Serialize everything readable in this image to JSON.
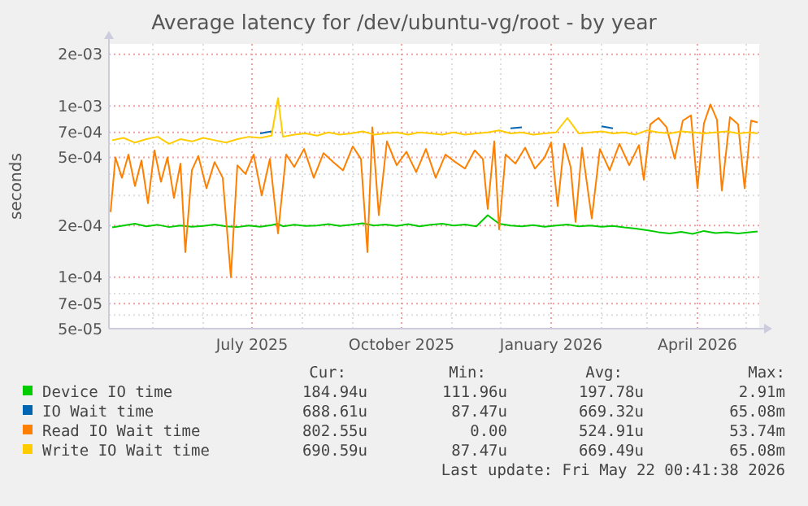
{
  "chart_data": {
    "type": "line",
    "title": "Average latency for /dev/ubuntu-vg/root - by year",
    "ylabel": "seconds",
    "log": "y",
    "grid": true,
    "legend": "bottom",
    "marker": "none",
    "line_style": "solid",
    "xlim": [
      "2025-04-04",
      "2026-05-09"
    ],
    "xticks": [
      {
        "value": "2025-05-01",
        "label": null
      },
      {
        "value": "2025-06-01",
        "label": null
      },
      {
        "value": "2025-07-01",
        "label": "July 2025"
      },
      {
        "value": "2025-08-01",
        "label": null
      },
      {
        "value": "2025-09-01",
        "label": null
      },
      {
        "value": "2025-10-01",
        "label": "October 2025"
      },
      {
        "value": "2025-11-01",
        "label": null
      },
      {
        "value": "2025-12-01",
        "label": null
      },
      {
        "value": "2026-01-01",
        "label": "January 2026"
      },
      {
        "value": "2026-02-01",
        "label": null
      },
      {
        "value": "2026-03-01",
        "label": null
      },
      {
        "value": "2026-04-01",
        "label": "April 2026"
      },
      {
        "value": "2026-05-01",
        "label": null
      }
    ],
    "ylim": [
      5e-05,
      0.0023
    ],
    "yticks": [
      {
        "value": 5e-05,
        "label": "5e-05"
      },
      {
        "value": 6e-05,
        "label": null
      },
      {
        "value": 7e-05,
        "label": "7e-05"
      },
      {
        "value": 8e-05,
        "label": null
      },
      {
        "value": 0.0001,
        "label": "1e-04"
      },
      {
        "value": 0.0002,
        "label": "2e-04"
      },
      {
        "value": 0.0003,
        "label": null
      },
      {
        "value": 0.0004,
        "label": null
      },
      {
        "value": 0.0005,
        "label": "5e-04"
      },
      {
        "value": 0.0006,
        "label": null
      },
      {
        "value": 0.0007,
        "label": "7e-04"
      },
      {
        "value": 0.001,
        "label": "1e-03"
      },
      {
        "value": 0.002,
        "label": "2e-03"
      }
    ],
    "x": [
      "2025-04-06",
      "2025-04-13",
      "2025-04-20",
      "2025-04-27",
      "2025-05-04",
      "2025-05-11",
      "2025-05-18",
      "2025-05-25",
      "2025-06-01",
      "2025-06-08",
      "2025-06-15",
      "2025-06-22",
      "2025-06-29",
      "2025-07-06",
      "2025-07-13",
      "2025-07-17",
      "2025-07-20",
      "2025-07-27",
      "2025-08-03",
      "2025-08-10",
      "2025-08-17",
      "2025-08-24",
      "2025-08-31",
      "2025-09-07",
      "2025-09-14",
      "2025-09-21",
      "2025-09-28",
      "2025-10-05",
      "2025-10-12",
      "2025-10-19",
      "2025-10-26",
      "2025-11-02",
      "2025-11-09",
      "2025-11-16",
      "2025-11-23",
      "2025-11-30",
      "2025-12-07",
      "2025-12-14",
      "2025-12-21",
      "2025-12-28",
      "2026-01-04",
      "2026-01-11",
      "2026-01-18",
      "2026-01-25",
      "2026-02-01",
      "2026-02-08",
      "2026-02-15",
      "2026-02-22",
      "2026-03-01",
      "2026-03-08",
      "2026-03-15",
      "2026-03-22",
      "2026-03-29",
      "2026-04-05",
      "2026-04-12",
      "2026-04-19",
      "2026-04-26",
      "2026-05-03",
      "2026-05-08"
    ],
    "series": [
      {
        "name": "Device IO time",
        "color": "#00cc00",
        "values": [
          0.000195,
          0.0002,
          0.000205,
          0.000198,
          0.000202,
          0.000196,
          0.0002,
          0.000197,
          0.000199,
          0.000203,
          0.000198,
          0.000196,
          0.0002,
          0.000197,
          0.000201,
          0.000205,
          0.000198,
          0.000202,
          0.000199,
          0.0002,
          0.000204,
          0.000199,
          0.000202,
          0.000206,
          0.0002,
          0.000203,
          0.000199,
          0.000204,
          0.000198,
          0.000202,
          0.000205,
          0.0002,
          0.000203,
          0.000198,
          0.00023,
          0.000205,
          0.0002,
          0.000198,
          0.000201,
          0.000197,
          0.0002,
          0.000203,
          0.000198,
          0.0002,
          0.000197,
          0.000199,
          0.000195,
          0.000192,
          0.000188,
          0.000183,
          0.00018,
          0.000184,
          0.000179,
          0.000186,
          0.000181,
          0.000183,
          0.00018,
          0.000183,
          0.000185
        ]
      },
      {
        "name": "IO Wait time",
        "color": "#0066b3",
        "values": [
          null,
          null,
          null,
          null,
          null,
          null,
          null,
          null,
          null,
          null,
          null,
          null,
          null,
          0.00069,
          0.00071,
          null,
          null,
          null,
          null,
          null,
          null,
          null,
          null,
          null,
          null,
          null,
          null,
          null,
          null,
          null,
          null,
          null,
          null,
          null,
          null,
          null,
          0.00074,
          0.00075,
          null,
          null,
          null,
          null,
          null,
          null,
          0.00076,
          0.00074,
          null,
          null,
          null,
          null,
          null,
          null,
          null,
          null,
          null,
          null,
          null,
          null,
          null
        ]
      },
      {
        "name": "Read IO Wait time",
        "color": "#ff8000",
        "x": [
          "2025-04-05",
          "2025-04-08",
          "2025-04-12",
          "2025-04-16",
          "2025-04-20",
          "2025-04-24",
          "2025-04-28",
          "2025-05-02",
          "2025-05-06",
          "2025-05-10",
          "2025-05-14",
          "2025-05-18",
          "2025-05-21",
          "2025-05-25",
          "2025-05-29",
          "2025-06-03",
          "2025-06-08",
          "2025-06-13",
          "2025-06-18",
          "2025-06-22",
          "2025-06-27",
          "2025-07-02",
          "2025-07-07",
          "2025-07-12",
          "2025-07-17",
          "2025-07-22",
          "2025-07-27",
          "2025-08-02",
          "2025-08-08",
          "2025-08-14",
          "2025-08-20",
          "2025-08-26",
          "2025-09-01",
          "2025-09-06",
          "2025-09-10",
          "2025-09-13",
          "2025-09-17",
          "2025-09-22",
          "2025-09-28",
          "2025-10-04",
          "2025-10-10",
          "2025-10-16",
          "2025-10-22",
          "2025-10-28",
          "2025-11-03",
          "2025-11-09",
          "2025-11-15",
          "2025-11-20",
          "2025-11-23",
          "2025-11-27",
          "2025-11-30",
          "2025-12-04",
          "2025-12-10",
          "2025-12-16",
          "2025-12-22",
          "2025-12-28",
          "2026-01-01",
          "2026-01-05",
          "2026-01-09",
          "2026-01-13",
          "2026-01-16",
          "2026-01-20",
          "2026-01-26",
          "2026-01-31",
          "2026-02-06",
          "2026-02-12",
          "2026-02-18",
          "2026-02-24",
          "2026-02-27",
          "2026-03-03",
          "2026-03-08",
          "2026-03-13",
          "2026-03-18",
          "2026-03-23",
          "2026-03-28",
          "2026-04-01",
          "2026-04-05",
          "2026-04-09",
          "2026-04-13",
          "2026-04-16",
          "2026-04-21",
          "2026-04-26",
          "2026-04-30",
          "2026-05-04",
          "2026-05-08"
        ],
        "values": [
          0.00024,
          0.0005,
          0.00038,
          0.00052,
          0.00034,
          0.00048,
          0.00027,
          0.00055,
          0.00036,
          0.0005,
          0.00029,
          0.00046,
          0.00014,
          0.00042,
          0.00051,
          0.00033,
          0.00047,
          0.00038,
          0.0001,
          0.00045,
          0.0004,
          0.00052,
          0.0003,
          0.00049,
          0.00018,
          0.00052,
          0.00044,
          0.00056,
          0.00038,
          0.00053,
          0.00047,
          0.00042,
          0.00058,
          0.00049,
          0.00014,
          0.00075,
          0.00023,
          0.00062,
          0.00045,
          0.00054,
          0.00041,
          0.00056,
          0.00038,
          0.00052,
          0.00047,
          0.00043,
          0.00055,
          0.00049,
          0.00025,
          0.00062,
          0.00019,
          0.00052,
          0.00046,
          0.00057,
          0.00043,
          0.0005,
          0.00061,
          0.00026,
          0.0006,
          0.00044,
          0.00021,
          0.00057,
          0.00022,
          0.00056,
          0.00042,
          0.0006,
          0.00045,
          0.00059,
          0.00037,
          0.00078,
          0.00085,
          0.00075,
          0.00049,
          0.00082,
          0.00088,
          0.00033,
          0.00079,
          0.00102,
          0.00083,
          0.00032,
          0.00086,
          0.00078,
          0.00033,
          0.00082,
          0.0008
        ]
      },
      {
        "name": "Write IO Wait time",
        "color": "#ffcc00",
        "values": [
          0.00063,
          0.00065,
          0.00061,
          0.00064,
          0.00066,
          0.0006,
          0.00064,
          0.00062,
          0.00065,
          0.00063,
          0.00061,
          0.00064,
          0.00066,
          0.00065,
          0.00067,
          0.00111,
          0.00066,
          0.00068,
          0.00069,
          0.00067,
          0.0007,
          0.00068,
          0.00069,
          0.00071,
          0.00068,
          0.00069,
          0.0007,
          0.00068,
          0.0007,
          0.00069,
          0.00068,
          0.0007,
          0.00068,
          0.00069,
          0.0007,
          0.00072,
          0.00069,
          0.0007,
          0.00068,
          0.00069,
          0.0007,
          0.00085,
          0.00069,
          0.0007,
          0.00071,
          0.00069,
          0.0007,
          0.00068,
          0.00072,
          0.0007,
          0.00069,
          0.00071,
          0.0007,
          0.00069,
          0.0007,
          0.00071,
          0.00069,
          0.0007,
          0.00069
        ]
      }
    ],
    "annotations": [
      "Cur:",
      "Min:",
      "Avg:",
      "Max:",
      "184.94u",
      "111.96u",
      "197.78u",
      "2.91m",
      "688.61u",
      "87.47u",
      "669.32u",
      "65.08m",
      "802.55u",
      "0.00",
      "524.91u",
      "53.74m",
      "690.59u",
      "87.47u",
      "669.49u",
      "65.08m",
      "Last update: Fri May 22 00:41:38 2026"
    ]
  }
}
